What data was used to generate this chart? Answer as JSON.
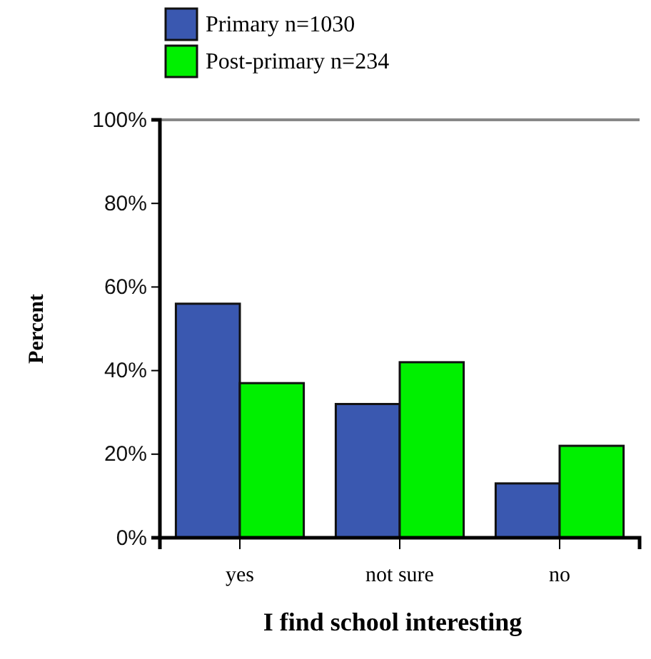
{
  "chart_data": {
    "type": "bar",
    "xlabel": "I find school interesting",
    "ylabel": "Percent",
    "categories": [
      "yes",
      "not sure",
      "no"
    ],
    "series": [
      {
        "name": "Primary n=1030",
        "color": "#3a58b0",
        "values": [
          56,
          32,
          13
        ]
      },
      {
        "name": "Post-primary n=234",
        "color": "#00f000",
        "values": [
          37,
          42,
          22
        ]
      }
    ],
    "ylim": [
      0,
      100
    ],
    "yticks": [
      {
        "value": 0,
        "label": "0%"
      },
      {
        "value": 20,
        "label": "20%"
      },
      {
        "value": 40,
        "label": "40%"
      },
      {
        "value": 60,
        "label": "60%"
      },
      {
        "value": 80,
        "label": "80%"
      },
      {
        "value": 100,
        "label": "100%"
      }
    ],
    "grid": false,
    "legend": "top"
  }
}
